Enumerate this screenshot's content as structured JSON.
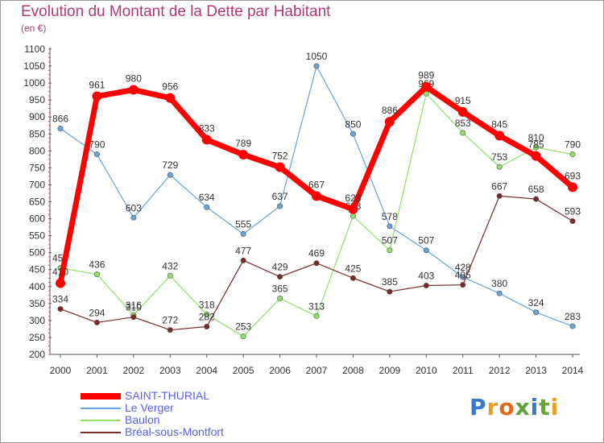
{
  "title": "Evolution du Montant de la Dette par Habitant",
  "unit": "(en €)",
  "logo": "Proxiti",
  "chart_data": {
    "type": "line",
    "title": "Evolution du Montant de la Dette par Habitant",
    "ylabel": "(en €)",
    "xlabel": "",
    "x": [
      "2000",
      "2001",
      "2002",
      "2003",
      "2004",
      "2005",
      "2006",
      "2007",
      "2008",
      "2009",
      "2010",
      "2011",
      "2012",
      "2013",
      "2014"
    ],
    "ylim": [
      200,
      1100
    ],
    "yticks": [
      200,
      250,
      300,
      350,
      400,
      450,
      500,
      550,
      600,
      650,
      700,
      750,
      800,
      850,
      900,
      950,
      1000,
      1050,
      1100
    ],
    "grid": false,
    "legend_position": "bottom-left",
    "series": [
      {
        "name": "SAINT-THURIAL",
        "color": "#ff0000",
        "values": [
          410,
          961,
          980,
          956,
          833,
          789,
          752,
          667,
          628,
          886,
          989,
          915,
          845,
          785,
          693
        ]
      },
      {
        "name": "Le Verger",
        "color": "#6aa3d5",
        "values": [
          866,
          790,
          603,
          729,
          634,
          555,
          637,
          1050,
          850,
          578,
          507,
          428,
          380,
          324,
          283
        ]
      },
      {
        "name": "Baulon",
        "color": "#92e06a",
        "values": [
          455,
          436,
          316,
          432,
          318,
          253,
          365,
          313,
          608,
          507,
          969,
          853,
          753,
          810,
          790
        ]
      },
      {
        "name": "Bréal-sous-Montfort",
        "color": "#7b2a2a",
        "values": [
          334,
          294,
          310,
          272,
          282,
          477,
          429,
          469,
          425,
          385,
          403,
          405,
          667,
          658,
          593
        ]
      }
    ]
  }
}
